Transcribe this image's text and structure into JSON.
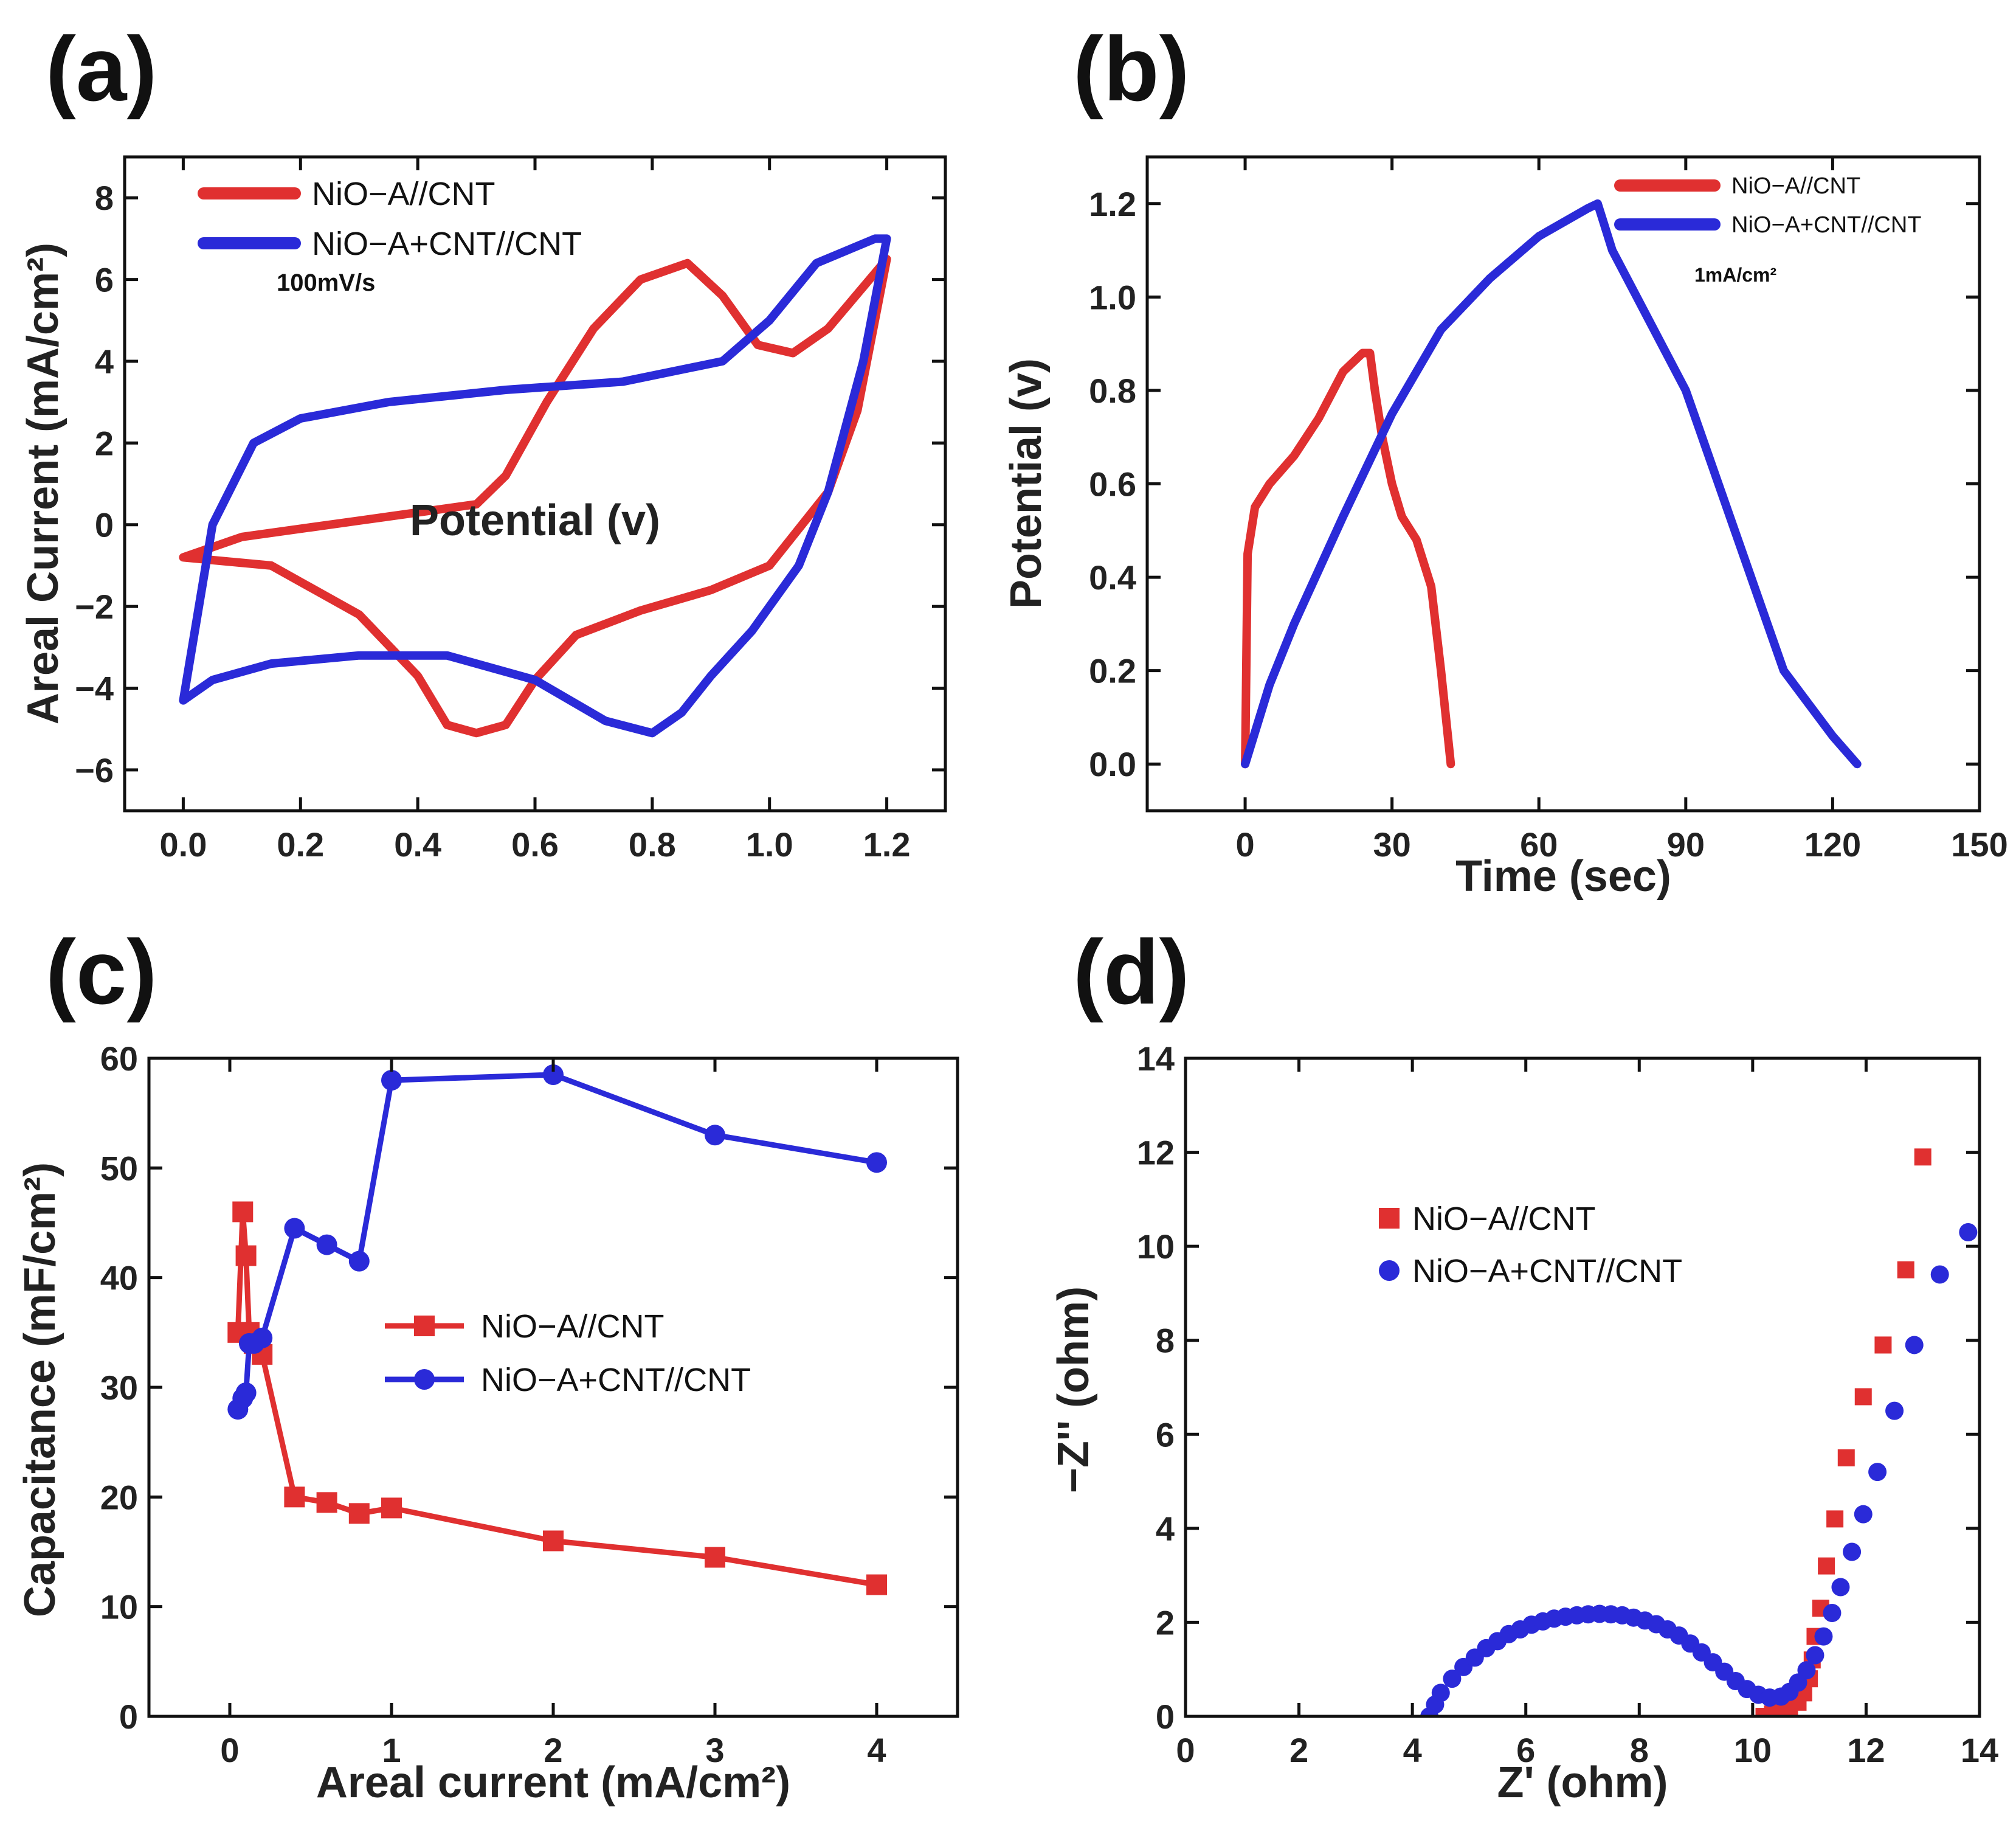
{
  "colors": {
    "red": "#e03030",
    "blue": "#2a2ad8",
    "axis": "#111111"
  },
  "chart_data": [
    {
      "id": "a",
      "panel_label": "(a)",
      "type": "line",
      "title": "",
      "xlabel": "Potential (v)",
      "ylabel": "Areal Current (mA/cm²)",
      "xlim": [
        -0.1,
        1.3
      ],
      "ylim": [
        -7,
        9
      ],
      "xticks": [
        0.0,
        0.2,
        0.4,
        0.6,
        0.8,
        1.0,
        1.2
      ],
      "xtick_labels": [
        "0.0",
        "0.2",
        "0.4",
        "0.6",
        "0.8",
        "1.0",
        "1.2"
      ],
      "yticks": [
        -6,
        -4,
        -2,
        0,
        2,
        4,
        6,
        8
      ],
      "ytick_labels": [
        "−6",
        "−4",
        "−2",
        "0",
        "2",
        "4",
        "6",
        "8"
      ],
      "annotation": "100mV/s",
      "series": [
        {
          "name": "NiO−A//CNT",
          "color": "#e03030",
          "marker": "none",
          "x": [
            0.0,
            0.1,
            0.3,
            0.5,
            0.55,
            0.62,
            0.7,
            0.78,
            0.86,
            0.92,
            0.98,
            1.04,
            1.1,
            1.2,
            1.15,
            1.1,
            1.0,
            0.9,
            0.78,
            0.67,
            0.6,
            0.55,
            0.5,
            0.45,
            0.4,
            0.3,
            0.15,
            0.0
          ],
          "y": [
            -0.8,
            -0.3,
            0.1,
            0.5,
            1.2,
            3.0,
            4.8,
            6.0,
            6.4,
            5.6,
            4.4,
            4.2,
            4.8,
            6.5,
            2.8,
            0.8,
            -1.0,
            -1.6,
            -2.1,
            -2.7,
            -3.8,
            -4.9,
            -5.1,
            -4.9,
            -3.7,
            -2.2,
            -1.0,
            -0.8
          ]
        },
        {
          "name": "NiO−A+CNT//CNT",
          "color": "#2a2ad8",
          "marker": "none",
          "x": [
            0.0,
            0.05,
            0.12,
            0.2,
            0.35,
            0.55,
            0.75,
            0.92,
            1.0,
            1.08,
            1.18,
            1.2,
            1.16,
            1.1,
            1.05,
            0.97,
            0.9,
            0.85,
            0.8,
            0.72,
            0.6,
            0.45,
            0.3,
            0.15,
            0.05,
            0.0
          ],
          "y": [
            -4.3,
            0.0,
            2.0,
            2.6,
            3.0,
            3.3,
            3.5,
            4.0,
            5.0,
            6.4,
            7.0,
            7.0,
            4.0,
            0.8,
            -1.0,
            -2.6,
            -3.7,
            -4.6,
            -5.1,
            -4.8,
            -3.8,
            -3.2,
            -3.2,
            -3.4,
            -3.8,
            -4.3
          ]
        }
      ]
    },
    {
      "id": "b",
      "panel_label": "(b)",
      "type": "line",
      "title": "",
      "xlabel": "Time (sec)",
      "ylabel": "Potential (v)",
      "xlim": [
        -20,
        150
      ],
      "ylim": [
        -0.1,
        1.3
      ],
      "xticks": [
        0,
        30,
        60,
        90,
        120,
        150
      ],
      "xtick_labels": [
        "0",
        "30",
        "60",
        "90",
        "120",
        "150"
      ],
      "yticks": [
        0.0,
        0.2,
        0.4,
        0.6,
        0.8,
        1.0,
        1.2
      ],
      "ytick_labels": [
        "0.0",
        "0.2",
        "0.4",
        "0.6",
        "0.8",
        "1.0",
        "1.2"
      ],
      "annotation": "1mA/cm²",
      "series": [
        {
          "name": "NiO−A//CNT",
          "color": "#e03030",
          "marker": "none",
          "x": [
            0,
            0.5,
            2,
            5,
            10,
            15,
            20,
            24,
            25.5,
            26.5,
            28,
            30,
            32,
            35,
            38,
            40,
            41.5,
            42
          ],
          "y": [
            0.0,
            0.45,
            0.55,
            0.6,
            0.66,
            0.74,
            0.84,
            0.88,
            0.88,
            0.8,
            0.7,
            0.6,
            0.53,
            0.48,
            0.38,
            0.2,
            0.05,
            0.0
          ]
        },
        {
          "name": "NiO−A+CNT//CNT",
          "color": "#2a2ad8",
          "marker": "none",
          "x": [
            0,
            5,
            10,
            20,
            30,
            40,
            50,
            60,
            70,
            72,
            75,
            80,
            90,
            100,
            110,
            120,
            125
          ],
          "y": [
            0.0,
            0.17,
            0.3,
            0.53,
            0.75,
            0.93,
            1.04,
            1.13,
            1.19,
            1.2,
            1.1,
            1.0,
            0.8,
            0.5,
            0.2,
            0.06,
            0.0
          ]
        }
      ]
    },
    {
      "id": "c",
      "panel_label": "(c)",
      "type": "line",
      "title": "",
      "xlabel": "Areal current (mA/cm²)",
      "ylabel": "Capacitance (mF/cm²)",
      "xlim": [
        -0.5,
        4.5
      ],
      "ylim": [
        0,
        60
      ],
      "xticks": [
        0,
        1,
        2,
        3,
        4
      ],
      "xtick_labels": [
        "0",
        "1",
        "2",
        "3",
        "4"
      ],
      "yticks": [
        0,
        10,
        20,
        30,
        40,
        50,
        60
      ],
      "ytick_labels": [
        "0",
        "10",
        "20",
        "30",
        "40",
        "50",
        "60"
      ],
      "series": [
        {
          "name": "NiO−A//CNT",
          "color": "#e03030",
          "marker": "square",
          "x": [
            0.05,
            0.08,
            0.1,
            0.12,
            0.15,
            0.2,
            0.4,
            0.6,
            0.8,
            1.0,
            2.0,
            3.0,
            4.0
          ],
          "y": [
            35.0,
            46.0,
            42.0,
            35.0,
            34.0,
            33.0,
            20.0,
            19.5,
            18.5,
            19.0,
            16.0,
            14.5,
            12.0
          ]
        },
        {
          "name": "NiO−A+CNT//CNT",
          "color": "#2a2ad8",
          "marker": "circle",
          "x": [
            0.05,
            0.08,
            0.1,
            0.12,
            0.15,
            0.2,
            0.4,
            0.6,
            0.8,
            1.0,
            2.0,
            3.0,
            4.0
          ],
          "y": [
            28.0,
            29.0,
            29.5,
            34.0,
            34.0,
            34.5,
            44.5,
            43.0,
            41.5,
            58.0,
            58.5,
            53.0,
            50.5
          ]
        }
      ]
    },
    {
      "id": "d",
      "panel_label": "(d)",
      "type": "scatter",
      "title": "",
      "xlabel": "Z' (ohm)",
      "ylabel": "−Z'' (ohm)",
      "xlim": [
        0,
        14
      ],
      "ylim": [
        0,
        14
      ],
      "xticks": [
        0,
        2,
        4,
        6,
        8,
        10,
        12,
        14
      ],
      "xtick_labels": [
        "0",
        "2",
        "4",
        "6",
        "8",
        "10",
        "12",
        "14"
      ],
      "yticks": [
        0,
        2,
        4,
        6,
        8,
        10,
        12,
        14
      ],
      "ytick_labels": [
        "0",
        "2",
        "4",
        "6",
        "8",
        "10",
        "12",
        "14"
      ],
      "series": [
        {
          "name": "NiO−A//CNT",
          "color": "#e03030",
          "marker": "square",
          "x": [
            10.2,
            10.35,
            10.5,
            10.65,
            10.8,
            10.9,
            11.0,
            11.05,
            11.1,
            11.2,
            11.3,
            11.45,
            11.65,
            11.95,
            12.3,
            12.7,
            13.0
          ],
          "y": [
            0.0,
            0.05,
            0.1,
            0.15,
            0.3,
            0.5,
            0.8,
            1.2,
            1.7,
            2.3,
            3.2,
            4.2,
            5.5,
            6.8,
            7.9,
            9.5,
            11.9
          ]
        },
        {
          "name": "NiO−A+CNT//CNT",
          "color": "#2a2ad8",
          "marker": "circle",
          "x": [
            4.3,
            4.4,
            4.5,
            4.7,
            4.9,
            5.1,
            5.3,
            5.5,
            5.7,
            5.9,
            6.1,
            6.3,
            6.5,
            6.7,
            6.9,
            7.1,
            7.3,
            7.5,
            7.7,
            7.9,
            8.1,
            8.3,
            8.5,
            8.7,
            8.9,
            9.1,
            9.3,
            9.5,
            9.7,
            9.9,
            10.1,
            10.3,
            10.5,
            10.65,
            10.8,
            10.95,
            11.1,
            11.25,
            11.4,
            11.55,
            11.75,
            11.95,
            12.2,
            12.5,
            12.85,
            13.3,
            13.8
          ],
          "y": [
            0.0,
            0.25,
            0.5,
            0.8,
            1.05,
            1.25,
            1.45,
            1.6,
            1.75,
            1.85,
            1.95,
            2.02,
            2.08,
            2.12,
            2.15,
            2.17,
            2.18,
            2.17,
            2.15,
            2.1,
            2.04,
            1.96,
            1.85,
            1.72,
            1.55,
            1.36,
            1.15,
            0.95,
            0.75,
            0.58,
            0.46,
            0.4,
            0.42,
            0.52,
            0.72,
            0.98,
            1.3,
            1.7,
            2.2,
            2.75,
            3.5,
            4.3,
            5.2,
            6.5,
            7.9,
            9.4,
            10.3
          ]
        }
      ]
    }
  ]
}
